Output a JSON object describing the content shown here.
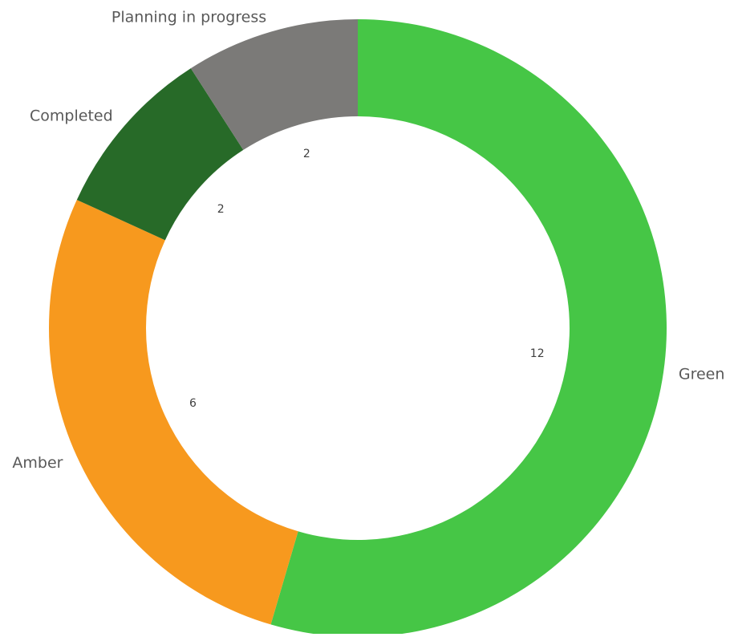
{
  "chart_data": {
    "type": "pie",
    "variant": "donut",
    "slices": [
      {
        "label": "Green",
        "value": 12,
        "value_label": "12",
        "color": "#46c646"
      },
      {
        "label": "Amber",
        "value": 6,
        "value_label": "6",
        "color": "#f7991e"
      },
      {
        "label": "Completed",
        "value": 2,
        "value_label": "2",
        "color": "#276a28"
      },
      {
        "label": "Planning in progress",
        "value": 2,
        "value_label": "2",
        "color": "#7b7a78"
      }
    ],
    "start_angle_deg": 0,
    "direction": "clockwise",
    "legend": "none"
  }
}
